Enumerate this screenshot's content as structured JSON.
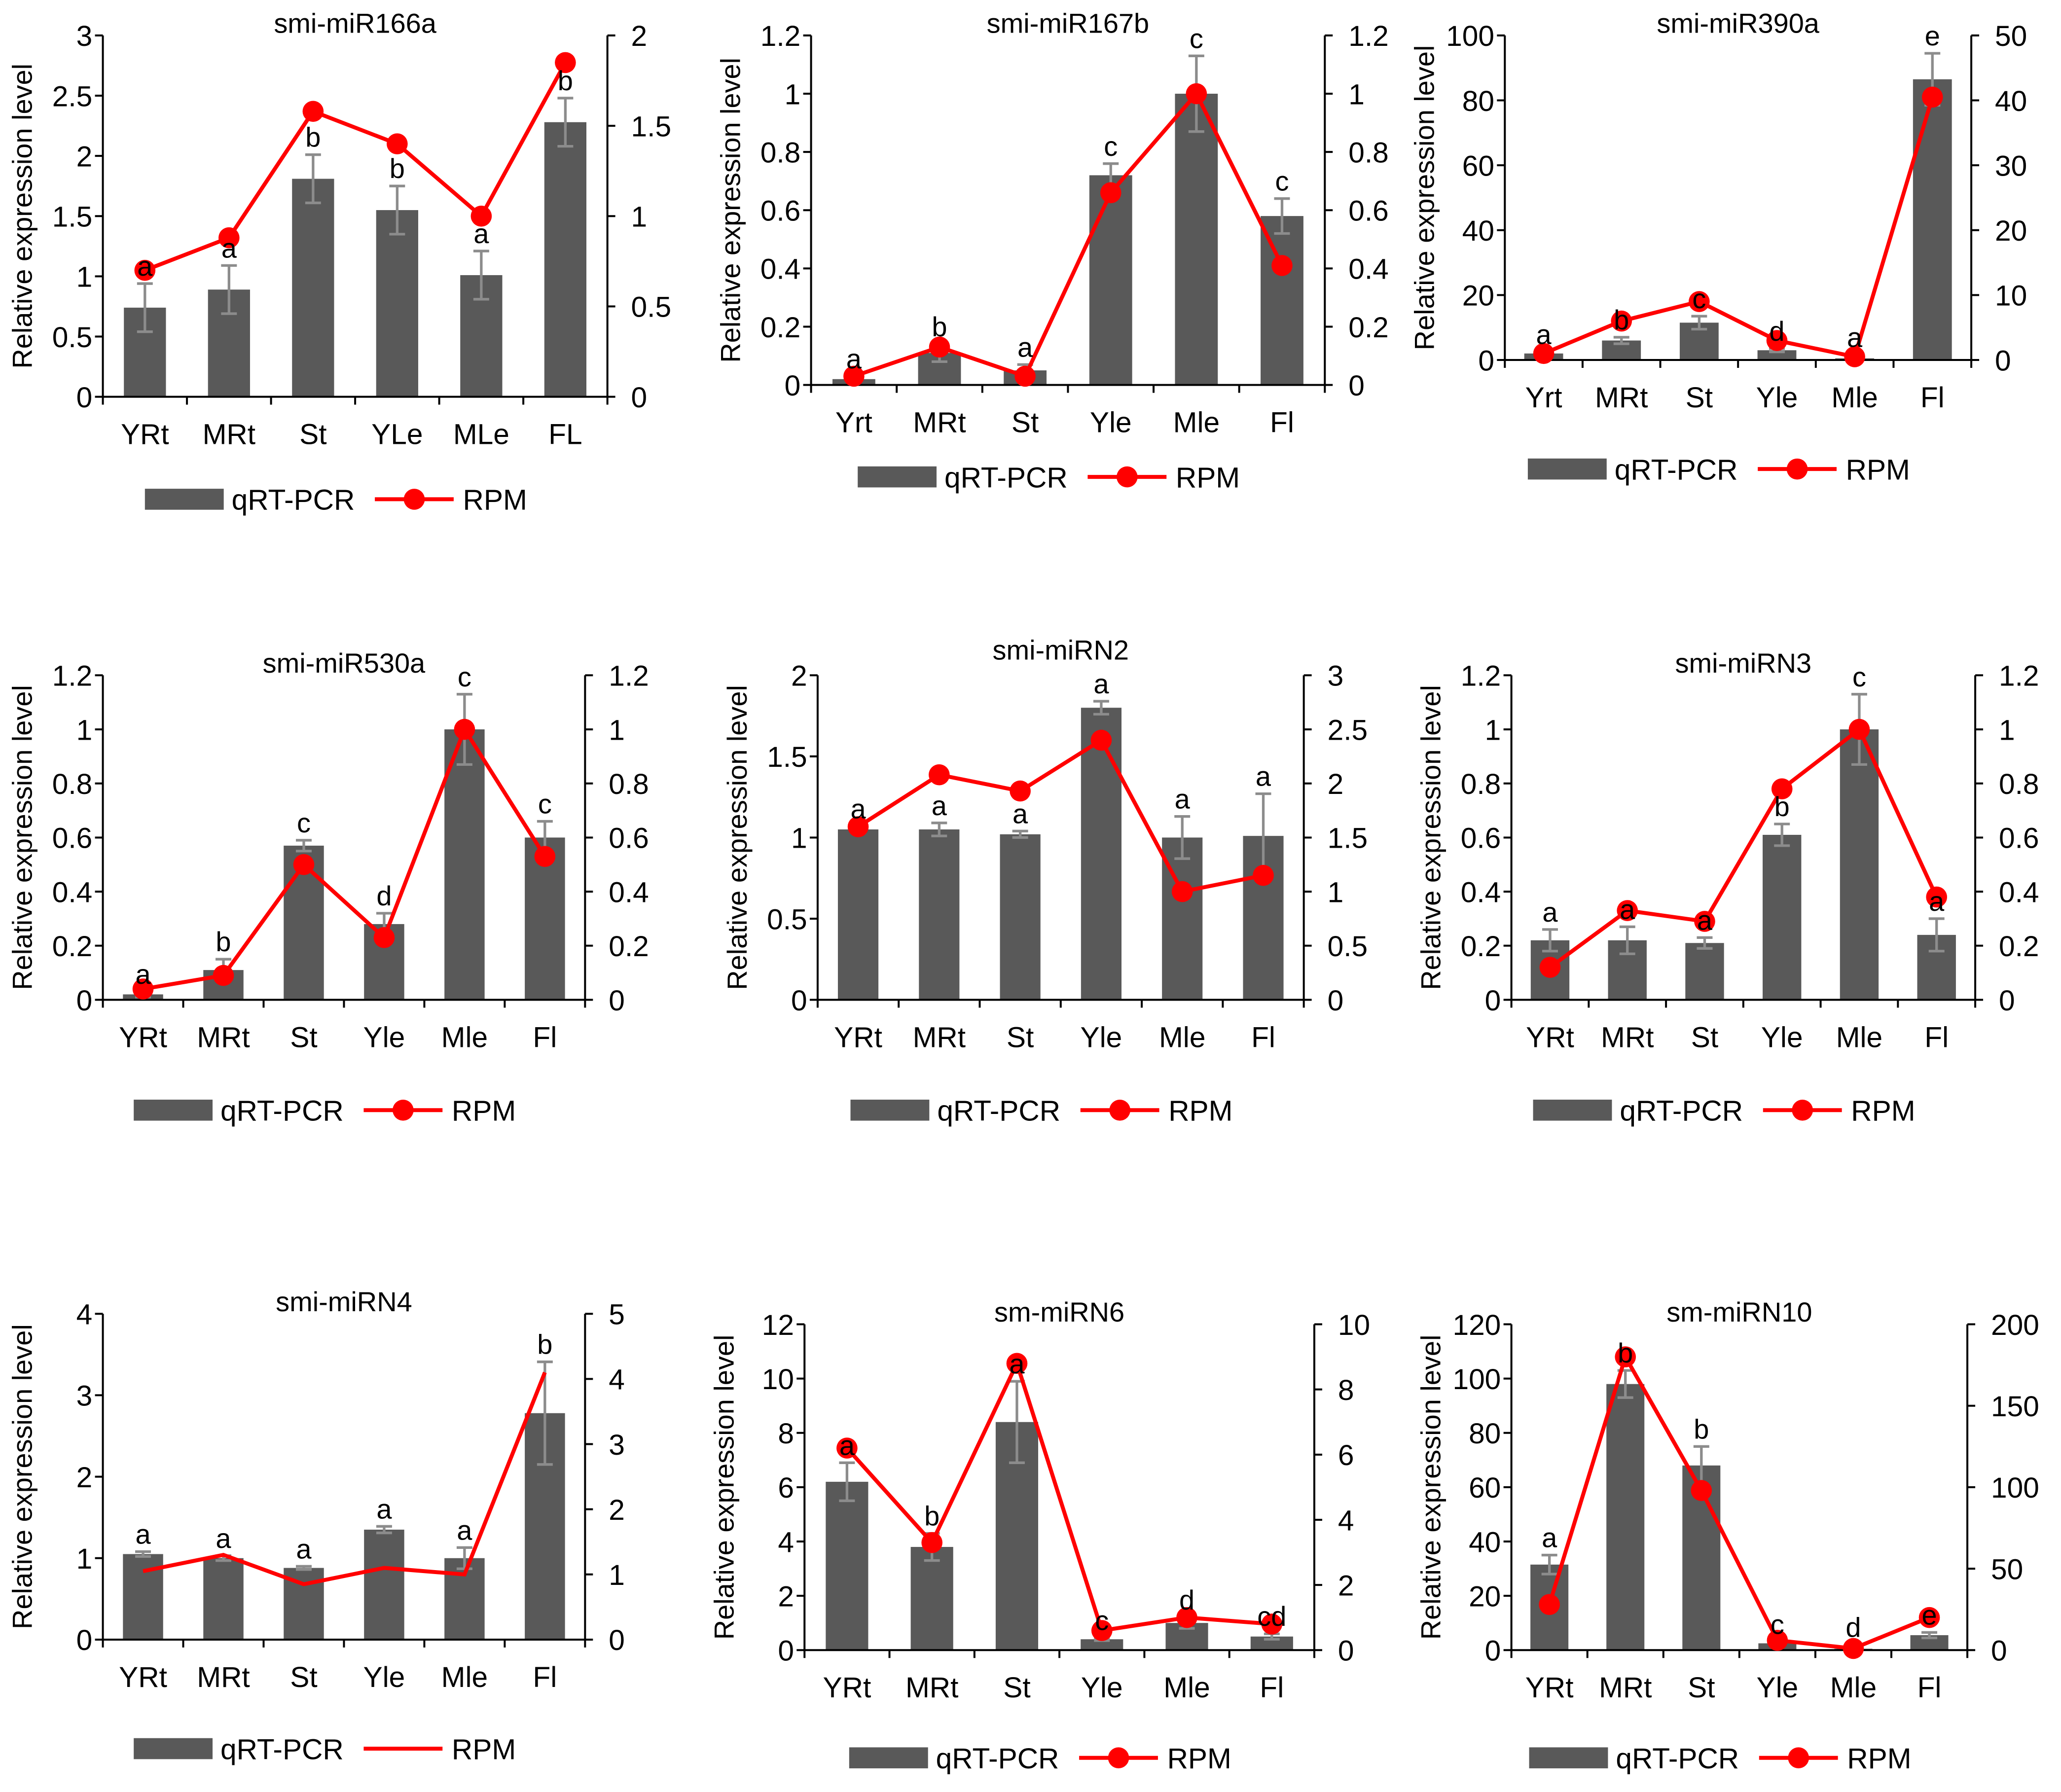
{
  "colors": {
    "bar": "#595959",
    "error": "#8c8c8c",
    "line": "#ff0000",
    "axis": "#000000"
  },
  "chart_data": [
    {
      "type": "bar+line",
      "title": "smi-miR166a",
      "ylabel": "Relative expression level",
      "categories": [
        "YRt",
        "MRt",
        "St",
        "YLe",
        "MLe",
        "FL"
      ],
      "ylim": [
        0,
        3
      ],
      "yticks": [
        "0",
        "0.5",
        "1",
        "1.5",
        "2",
        "2.5",
        "3"
      ],
      "y2lim": [
        0,
        2
      ],
      "y2ticks": [
        "0",
        "0.5",
        "1",
        "1.5",
        "2"
      ],
      "series": [
        {
          "name": "qRT-PCR",
          "values": [
            0.74,
            0.89,
            1.81,
            1.55,
            1.01,
            2.28
          ],
          "errors": [
            0.2,
            0.2,
            0.2,
            0.2,
            0.2,
            0.2
          ]
        },
        {
          "name": "RPM",
          "axis": "right",
          "values": [
            0.7,
            0.88,
            1.58,
            1.4,
            1.0,
            1.85
          ],
          "markers": true
        }
      ],
      "letters": [
        "a",
        "a",
        "b",
        "b",
        "a",
        "b"
      ]
    },
    {
      "type": "bar+line",
      "title": "smi-miR167b",
      "ylabel": "Relative expression level",
      "categories": [
        "Yrt",
        "MRt",
        "St",
        "Yle",
        "Mle",
        "Fl"
      ],
      "ylim": [
        0,
        1.2
      ],
      "yticks": [
        "0",
        "0.2",
        "0.4",
        "0.6",
        "0.8",
        "1",
        "1.2"
      ],
      "y2lim": [
        0,
        1.2
      ],
      "y2ticks": [
        "0",
        "0.2",
        "0.4",
        "0.6",
        "0.8",
        "1",
        "1.2"
      ],
      "series": [
        {
          "name": "qRT-PCR",
          "values": [
            0.02,
            0.11,
            0.05,
            0.72,
            1.0,
            0.58
          ],
          "errors": [
            0.01,
            0.03,
            0.02,
            0.04,
            0.13,
            0.06
          ]
        },
        {
          "name": "RPM",
          "axis": "right",
          "values": [
            0.03,
            0.13,
            0.03,
            0.66,
            1.0,
            0.41
          ],
          "markers": true
        }
      ],
      "letters": [
        "a",
        "b",
        "a",
        "c",
        "c",
        "c"
      ]
    },
    {
      "type": "bar+line",
      "title": "smi-miR390a",
      "ylabel": "Relative expression level",
      "categories": [
        "Yrt",
        "MRt",
        "St",
        "Yle",
        "Mle",
        "Fl"
      ],
      "ylim": [
        0,
        100
      ],
      "yticks": [
        "0",
        "20",
        "40",
        "60",
        "80",
        "100"
      ],
      "y2lim": [
        0,
        50
      ],
      "y2ticks": [
        "0",
        "10",
        "20",
        "30",
        "40",
        "50"
      ],
      "series": [
        {
          "name": "qRT-PCR",
          "values": [
            2,
            6,
            11.5,
            3,
            0.5,
            86.5
          ],
          "errors": [
            0.5,
            1,
            2,
            0.5,
            0.2,
            8
          ]
        },
        {
          "name": "RPM",
          "axis": "right",
          "values": [
            1,
            6,
            9,
            3,
            0.5,
            40.5
          ],
          "markers": true
        }
      ],
      "letters": [
        "a",
        "b",
        "c",
        "d",
        "a",
        "e"
      ]
    },
    {
      "type": "bar+line",
      "title": "smi-miR530a",
      "ylabel": "Relative expression level",
      "categories": [
        "YRt",
        "MRt",
        "St",
        "Yle",
        "Mle",
        "Fl"
      ],
      "ylim": [
        0,
        1.2
      ],
      "yticks": [
        "0",
        "0.2",
        "0.4",
        "0.6",
        "0.8",
        "1",
        "1.2"
      ],
      "y2lim": [
        0,
        1.2
      ],
      "y2ticks": [
        "0",
        "0.2",
        "0.4",
        "0.6",
        "0.8",
        "1",
        "1.2"
      ],
      "series": [
        {
          "name": "qRT-PCR",
          "values": [
            0.02,
            0.11,
            0.57,
            0.28,
            1.0,
            0.6
          ],
          "errors": [
            0.01,
            0.04,
            0.02,
            0.04,
            0.13,
            0.06
          ]
        },
        {
          "name": "RPM",
          "axis": "right",
          "values": [
            0.04,
            0.09,
            0.5,
            0.23,
            1.0,
            0.53
          ],
          "markers": true
        }
      ],
      "letters": [
        "a",
        "b",
        "c",
        "d",
        "c",
        "c"
      ]
    },
    {
      "type": "bar+line",
      "title": "smi-miRN2",
      "ylabel": "Relative expression level",
      "categories": [
        "YRt",
        "MRt",
        "St",
        "Yle",
        "Mle",
        "Fl"
      ],
      "ylim": [
        0,
        2
      ],
      "yticks": [
        "0",
        "0.5",
        "1",
        "1.5",
        "2"
      ],
      "y2lim": [
        0,
        3
      ],
      "y2ticks": [
        "0",
        "0.5",
        "1",
        "1.5",
        "2",
        "2.5",
        "3"
      ],
      "series": [
        {
          "name": "qRT-PCR",
          "values": [
            1.05,
            1.05,
            1.02,
            1.8,
            1.0,
            1.01
          ],
          "errors": [
            0.02,
            0.04,
            0.02,
            0.04,
            0.13,
            0.26
          ]
        },
        {
          "name": "RPM",
          "axis": "right",
          "values": [
            1.6,
            2.08,
            1.93,
            2.4,
            1.0,
            1.15
          ],
          "markers": true
        }
      ],
      "letters": [
        "a",
        "a",
        "a",
        "a",
        "a",
        "a"
      ]
    },
    {
      "type": "bar+line",
      "title": "smi-miRN3",
      "ylabel": "Relative expression level",
      "categories": [
        "YRt",
        "MRt",
        "St",
        "Yle",
        "Mle",
        "Fl"
      ],
      "ylim": [
        0,
        1.2
      ],
      "yticks": [
        "0",
        "0.2",
        "0.4",
        "0.6",
        "0.8",
        "1",
        "1.2"
      ],
      "y2lim": [
        0,
        1.2
      ],
      "y2ticks": [
        "0",
        "0.2",
        "0.4",
        "0.6",
        "0.8",
        "1",
        "1.2"
      ],
      "series": [
        {
          "name": "qRT-PCR",
          "values": [
            0.22,
            0.22,
            0.21,
            0.61,
            1.0,
            0.24
          ],
          "errors": [
            0.04,
            0.05,
            0.02,
            0.04,
            0.13,
            0.06
          ]
        },
        {
          "name": "RPM",
          "axis": "right",
          "values": [
            0.12,
            0.33,
            0.29,
            0.78,
            1.0,
            0.38
          ],
          "markers": true
        }
      ],
      "letters": [
        "a",
        "a",
        "a",
        "b",
        "c",
        "a"
      ]
    },
    {
      "type": "bar+line",
      "title": "smi-miRN4",
      "ylabel": "Relative expression level",
      "categories": [
        "YRt",
        "MRt",
        "St",
        "Yle",
        "Mle",
        "Fl"
      ],
      "ylim": [
        0,
        4
      ],
      "yticks": [
        "0",
        "1",
        "2",
        "3",
        "4"
      ],
      "y2lim": [
        0,
        5
      ],
      "y2ticks": [
        "0",
        "1",
        "2",
        "3",
        "4",
        "5"
      ],
      "series": [
        {
          "name": "qRT-PCR",
          "values": [
            1.05,
            1.0,
            0.88,
            1.35,
            1.0,
            2.78
          ],
          "errors": [
            0.03,
            0.03,
            0.02,
            0.04,
            0.13,
            0.63
          ]
        },
        {
          "name": "RPM",
          "axis": "right",
          "values": [
            1.05,
            1.3,
            0.85,
            1.1,
            1.0,
            4.1
          ],
          "markers": false
        }
      ],
      "letters": [
        "a",
        "a",
        "a",
        "a",
        "a",
        "b"
      ]
    },
    {
      "type": "bar+line",
      "title": "sm-miRN6",
      "ylabel": "Relative expression level",
      "categories": [
        "YRt",
        "MRt",
        "St",
        "Yle",
        "Mle",
        "Fl"
      ],
      "ylim": [
        0,
        12
      ],
      "yticks": [
        "0",
        "2",
        "4",
        "6",
        "8",
        "10",
        "12"
      ],
      "y2lim": [
        0,
        10
      ],
      "y2ticks": [
        "0",
        "2",
        "4",
        "6",
        "8",
        "10"
      ],
      "series": [
        {
          "name": "qRT-PCR",
          "values": [
            6.2,
            3.8,
            8.4,
            0.4,
            1.0,
            0.5
          ],
          "errors": [
            0.7,
            0.5,
            1.5,
            0.05,
            0.2,
            0.1
          ]
        },
        {
          "name": "RPM",
          "axis": "right",
          "values": [
            6.2,
            3.3,
            8.8,
            0.6,
            1.0,
            0.8
          ],
          "markers": true
        }
      ],
      "letters": [
        "a",
        "b",
        "a",
        "c",
        "d",
        "cd"
      ]
    },
    {
      "type": "bar+line",
      "title": "sm-miRN10",
      "ylabel": "Relative expression level",
      "categories": [
        "YRt",
        "MRt",
        "St",
        "Yle",
        "Mle",
        "Fl"
      ],
      "ylim": [
        0,
        120
      ],
      "yticks": [
        "0",
        "20",
        "40",
        "60",
        "80",
        "100",
        "120"
      ],
      "y2lim": [
        0,
        200
      ],
      "y2ticks": [
        "0",
        "50",
        "100",
        "150",
        "200"
      ],
      "series": [
        {
          "name": "qRT-PCR",
          "values": [
            31.5,
            98,
            68,
            2.5,
            0.5,
            5.5
          ],
          "errors": [
            3.5,
            5,
            7,
            0.5,
            0.2,
            1
          ]
        },
        {
          "name": "RPM",
          "axis": "right",
          "values": [
            28,
            180,
            98,
            6,
            1,
            20
          ],
          "markers": true
        }
      ],
      "letters": [
        "a",
        "b",
        "b",
        "c",
        "d",
        "e"
      ]
    }
  ]
}
